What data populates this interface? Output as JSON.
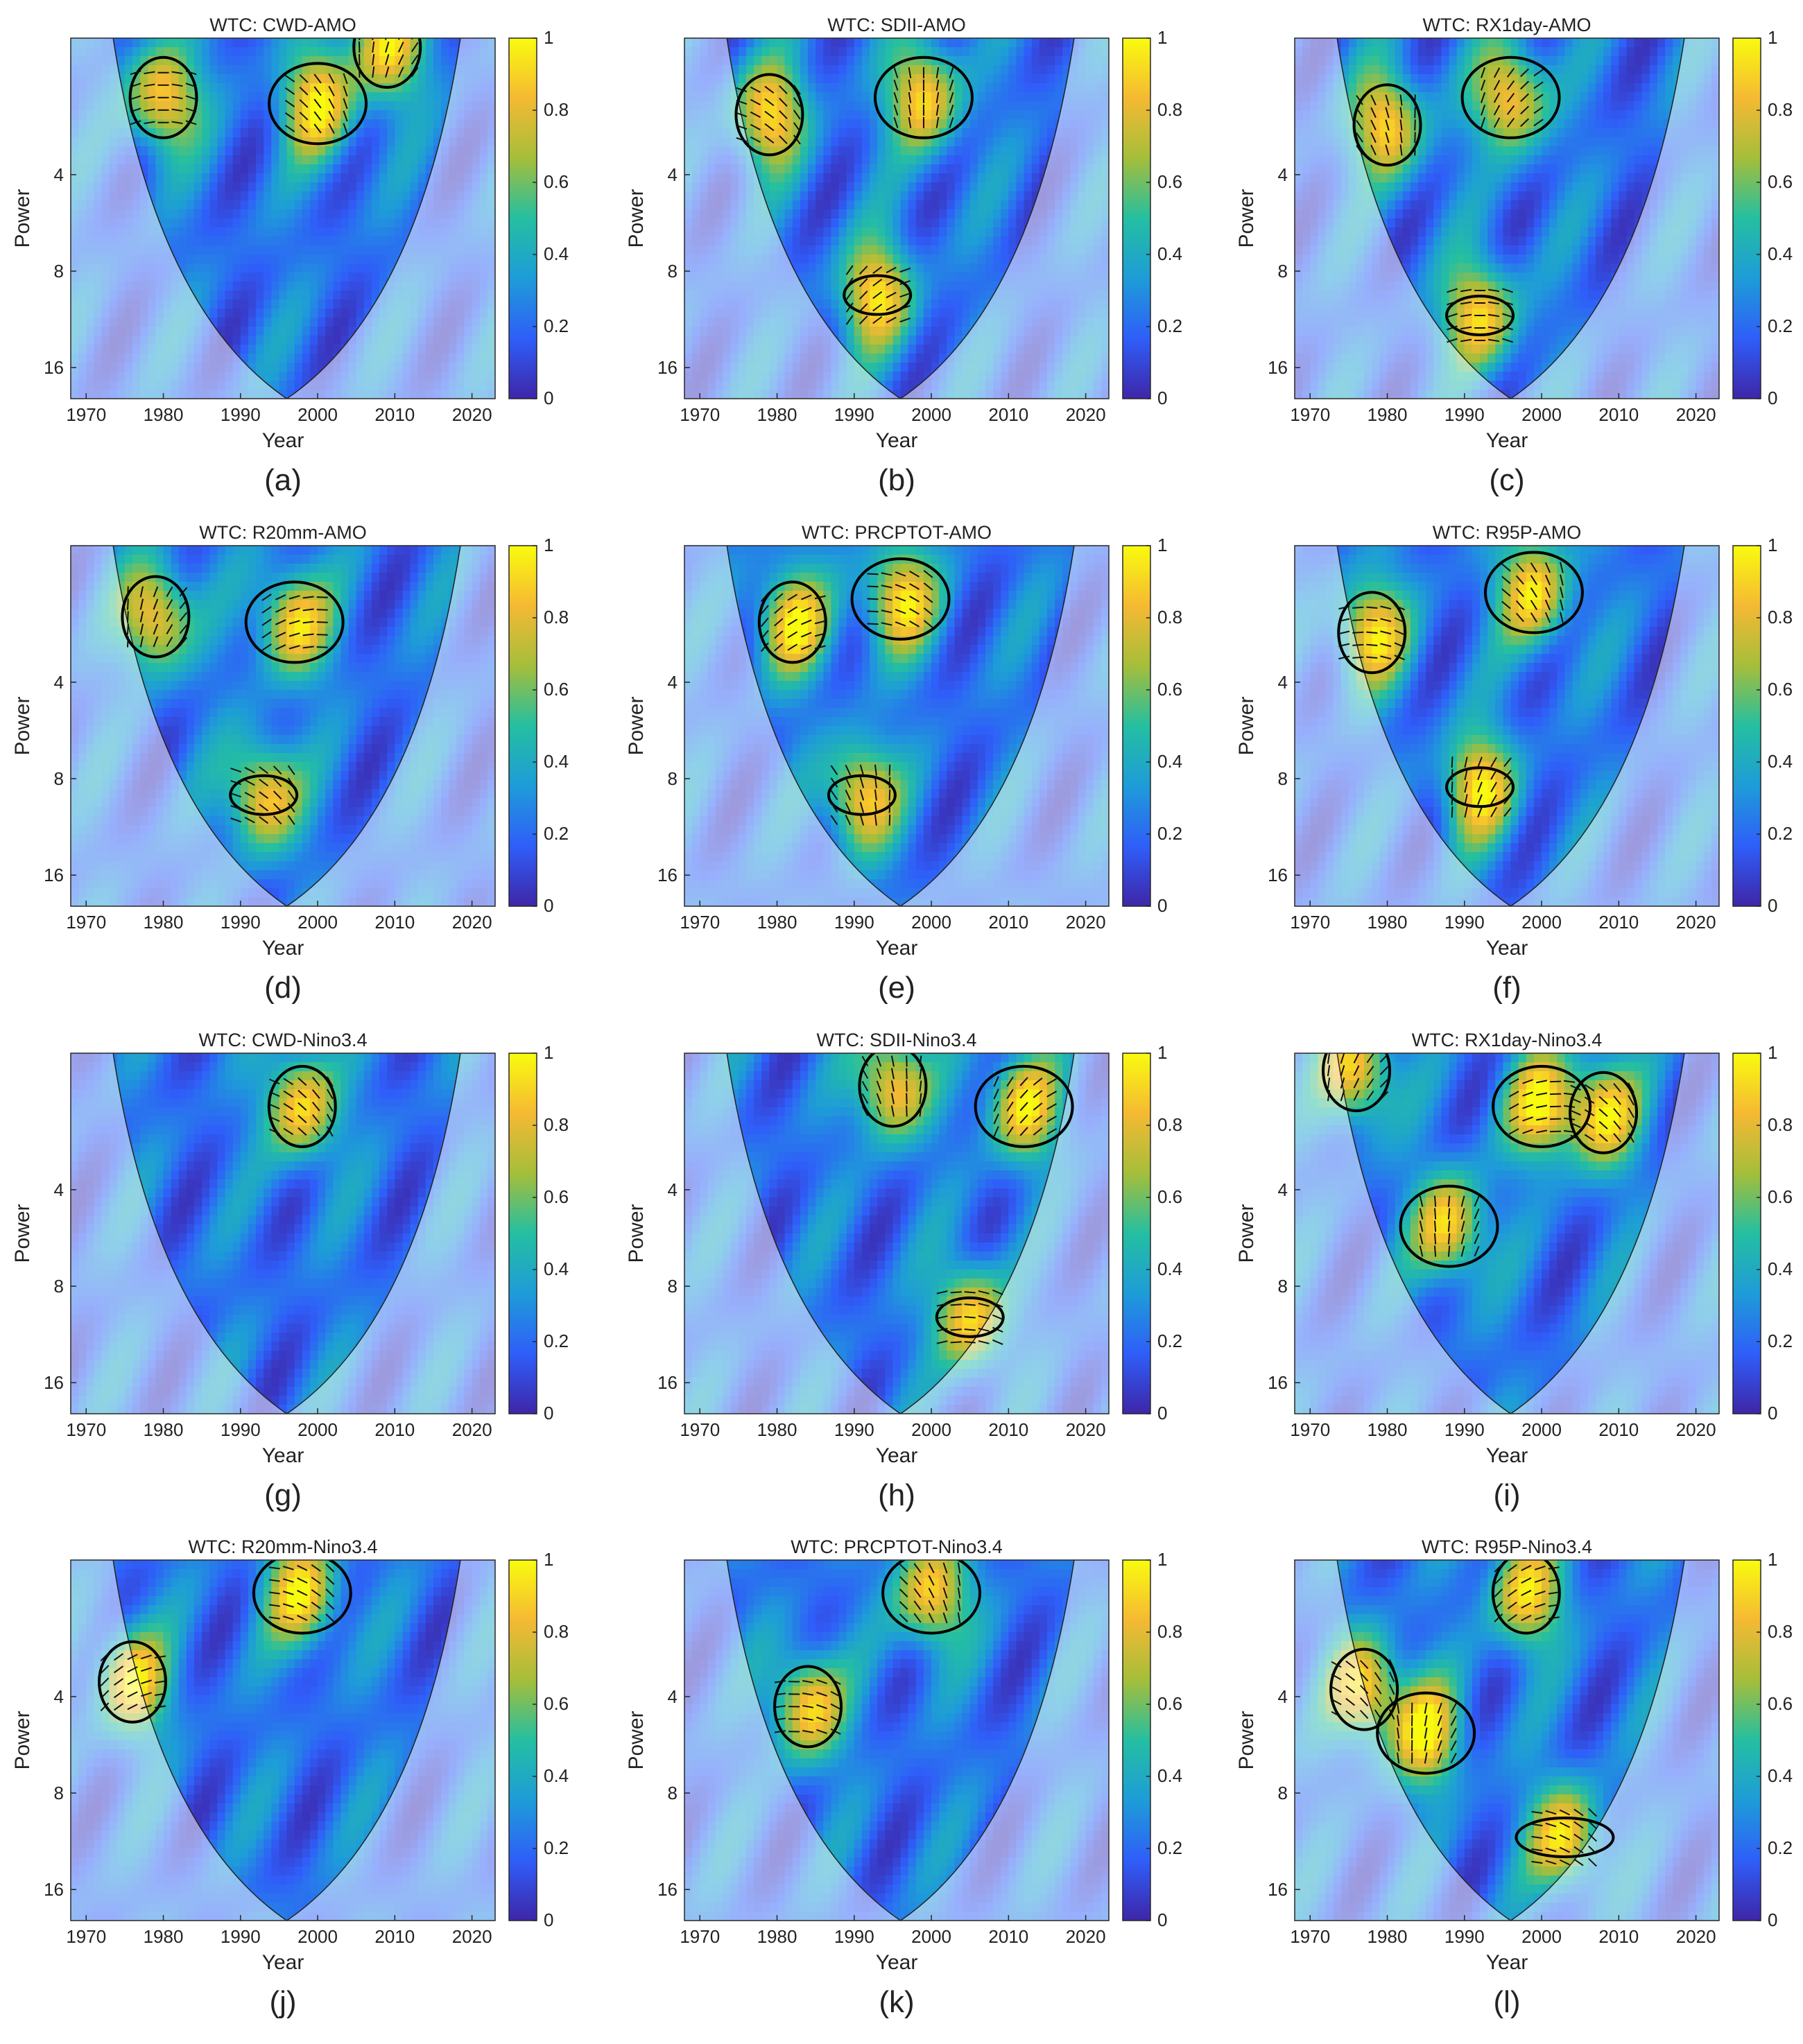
{
  "figure": {
    "colorbar_ticks": [
      "0",
      "0.2",
      "0.4",
      "0.6",
      "0.8",
      "1"
    ],
    "colormap": [
      "#3e26a8",
      "#2f5ef9",
      "#1e9cd8",
      "#24bfa1",
      "#a5be3a",
      "#f5b933",
      "#f9fb0e"
    ]
  },
  "chart_data": [
    {
      "type": "heatmap",
      "panel_label": "(a)",
      "title": "WTC: CWD-AMO",
      "xlabel": "Year",
      "ylabel": "Power",
      "xlim": [
        1968,
        2023
      ],
      "x_ticks": [
        "1970",
        "1980",
        "1990",
        "2000",
        "2010",
        "2020"
      ],
      "y_ticks": [
        "4",
        "8",
        "16"
      ],
      "ylim_period": [
        1.5,
        20
      ],
      "coi_center_year": 1996,
      "signif": [
        {
          "year": 1980,
          "period": 2.3
        },
        {
          "year": 2000,
          "period": 2.4
        },
        {
          "year": 2009,
          "period": 1.6
        }
      ]
    },
    {
      "type": "heatmap",
      "panel_label": "(b)",
      "title": "WTC: SDII-AMO",
      "xlabel": "Year",
      "ylabel": "Power",
      "xlim": [
        1968,
        2023
      ],
      "x_ticks": [
        "1970",
        "1980",
        "1990",
        "2000",
        "2010",
        "2020"
      ],
      "y_ticks": [
        "4",
        "8",
        "16"
      ],
      "ylim_period": [
        1.5,
        20
      ],
      "coi_center_year": 1996,
      "signif": [
        {
          "year": 1979,
          "period": 2.6
        },
        {
          "year": 1999,
          "period": 2.3
        },
        {
          "year": 1993,
          "period": 9.5
        }
      ]
    },
    {
      "type": "heatmap",
      "panel_label": "(c)",
      "title": "WTC: RX1day-AMO",
      "xlabel": "Year",
      "ylabel": "Power",
      "xlim": [
        1968,
        2023
      ],
      "x_ticks": [
        "1970",
        "1980",
        "1990",
        "2000",
        "2010",
        "2020"
      ],
      "y_ticks": [
        "4",
        "8",
        "16"
      ],
      "ylim_period": [
        1.5,
        20
      ],
      "coi_center_year": 1996,
      "signif": [
        {
          "year": 1980,
          "period": 2.8
        },
        {
          "year": 1996,
          "period": 2.3
        },
        {
          "year": 1992,
          "period": 11
        }
      ]
    },
    {
      "type": "heatmap",
      "panel_label": "(d)",
      "title": "WTC: R20mm-AMO",
      "xlabel": "Year",
      "ylabel": "Power",
      "xlim": [
        1968,
        2023
      ],
      "x_ticks": [
        "1970",
        "1980",
        "1990",
        "2000",
        "2010",
        "2020"
      ],
      "y_ticks": [
        "4",
        "8",
        "16"
      ],
      "ylim_period": [
        1.5,
        20
      ],
      "coi_center_year": 1996,
      "signif": [
        {
          "year": 1979,
          "period": 2.5
        },
        {
          "year": 1997,
          "period": 2.6
        },
        {
          "year": 1993,
          "period": 9
        }
      ]
    },
    {
      "type": "heatmap",
      "panel_label": "(e)",
      "title": "WTC: PRCPTOT-AMO",
      "xlabel": "Year",
      "ylabel": "Power",
      "xlim": [
        1968,
        2023
      ],
      "x_ticks": [
        "1970",
        "1980",
        "1990",
        "2000",
        "2010",
        "2020"
      ],
      "y_ticks": [
        "4",
        "8",
        "16"
      ],
      "ylim_period": [
        1.5,
        20
      ],
      "coi_center_year": 1996,
      "signif": [
        {
          "year": 1982,
          "period": 2.6
        },
        {
          "year": 1996,
          "period": 2.2
        },
        {
          "year": 1991,
          "period": 9
        }
      ]
    },
    {
      "type": "heatmap",
      "panel_label": "(f)",
      "title": "WTC: R95P-AMO",
      "xlabel": "Year",
      "ylabel": "Power",
      "xlim": [
        1968,
        2023
      ],
      "x_ticks": [
        "1970",
        "1980",
        "1990",
        "2000",
        "2010",
        "2020"
      ],
      "y_ticks": [
        "4",
        "8",
        "16"
      ],
      "ylim_period": [
        1.5,
        20
      ],
      "coi_center_year": 1996,
      "signif": [
        {
          "year": 1978,
          "period": 2.8
        },
        {
          "year": 1999,
          "period": 2.1
        },
        {
          "year": 1992,
          "period": 8.5
        }
      ]
    },
    {
      "type": "heatmap",
      "panel_label": "(g)",
      "title": "WTC: CWD-Nino3.4",
      "xlabel": "Year",
      "ylabel": "Power",
      "xlim": [
        1968,
        2023
      ],
      "x_ticks": [
        "1970",
        "1980",
        "1990",
        "2000",
        "2010",
        "2020"
      ],
      "y_ticks": [
        "4",
        "8",
        "16"
      ],
      "ylim_period": [
        1.5,
        20
      ],
      "coi_center_year": 1996,
      "signif": [
        {
          "year": 1998,
          "period": 2.2
        }
      ]
    },
    {
      "type": "heatmap",
      "panel_label": "(h)",
      "title": "WTC: SDII-Nino3.4",
      "xlabel": "Year",
      "ylabel": "Power",
      "xlim": [
        1968,
        2023
      ],
      "x_ticks": [
        "1970",
        "1980",
        "1990",
        "2000",
        "2010",
        "2020"
      ],
      "y_ticks": [
        "4",
        "8",
        "16"
      ],
      "ylim_period": [
        1.5,
        20
      ],
      "coi_center_year": 1996,
      "signif": [
        {
          "year": 1995,
          "period": 1.9
        },
        {
          "year": 2012,
          "period": 2.2
        },
        {
          "year": 2005,
          "period": 10
        }
      ]
    },
    {
      "type": "heatmap",
      "panel_label": "(i)",
      "title": "WTC: RX1day-Nino3.4",
      "xlabel": "Year",
      "ylabel": "Power",
      "xlim": [
        1968,
        2023
      ],
      "x_ticks": [
        "1970",
        "1980",
        "1990",
        "2000",
        "2010",
        "2020"
      ],
      "y_ticks": [
        "4",
        "8",
        "16"
      ],
      "ylim_period": [
        1.5,
        20
      ],
      "coi_center_year": 1996,
      "signif": [
        {
          "year": 1976,
          "period": 1.7
        },
        {
          "year": 2000,
          "period": 2.2
        },
        {
          "year": 2008,
          "period": 2.3
        },
        {
          "year": 1988,
          "period": 5.2
        }
      ]
    },
    {
      "type": "heatmap",
      "panel_label": "(j)",
      "title": "WTC: R20mm-Nino3.4",
      "xlabel": "Year",
      "ylabel": "Power",
      "xlim": [
        1968,
        2023
      ],
      "x_ticks": [
        "1970",
        "1980",
        "1990",
        "2000",
        "2010",
        "2020"
      ],
      "y_ticks": [
        "4",
        "8",
        "16"
      ],
      "ylim_period": [
        1.5,
        20
      ],
      "coi_center_year": 1996,
      "signif": [
        {
          "year": 1976,
          "period": 3.6
        },
        {
          "year": 1998,
          "period": 1.9
        }
      ]
    },
    {
      "type": "heatmap",
      "panel_label": "(k)",
      "title": "WTC: PRCPTOT-Nino3.4",
      "xlabel": "Year",
      "ylabel": "Power",
      "xlim": [
        1968,
        2023
      ],
      "x_ticks": [
        "1970",
        "1980",
        "1990",
        "2000",
        "2010",
        "2020"
      ],
      "y_ticks": [
        "4",
        "8",
        "16"
      ],
      "ylim_period": [
        1.5,
        20
      ],
      "coi_center_year": 1996,
      "signif": [
        {
          "year": 1984,
          "period": 4.3
        },
        {
          "year": 2000,
          "period": 1.9
        }
      ]
    },
    {
      "type": "heatmap",
      "panel_label": "(l)",
      "title": "WTC: R95P-Nino3.4",
      "xlabel": "Year",
      "ylabel": "Power",
      "xlim": [
        1968,
        2023
      ],
      "x_ticks": [
        "1970",
        "1980",
        "1990",
        "2000",
        "2010",
        "2020"
      ],
      "y_ticks": [
        "4",
        "8",
        "16"
      ],
      "ylim_period": [
        1.5,
        20
      ],
      "coi_center_year": 1996,
      "signif": [
        {
          "year": 1977,
          "period": 3.8
        },
        {
          "year": 1985,
          "period": 5.2
        },
        {
          "year": 1998,
          "period": 1.9
        },
        {
          "year": 2003,
          "period": 11
        }
      ]
    }
  ]
}
